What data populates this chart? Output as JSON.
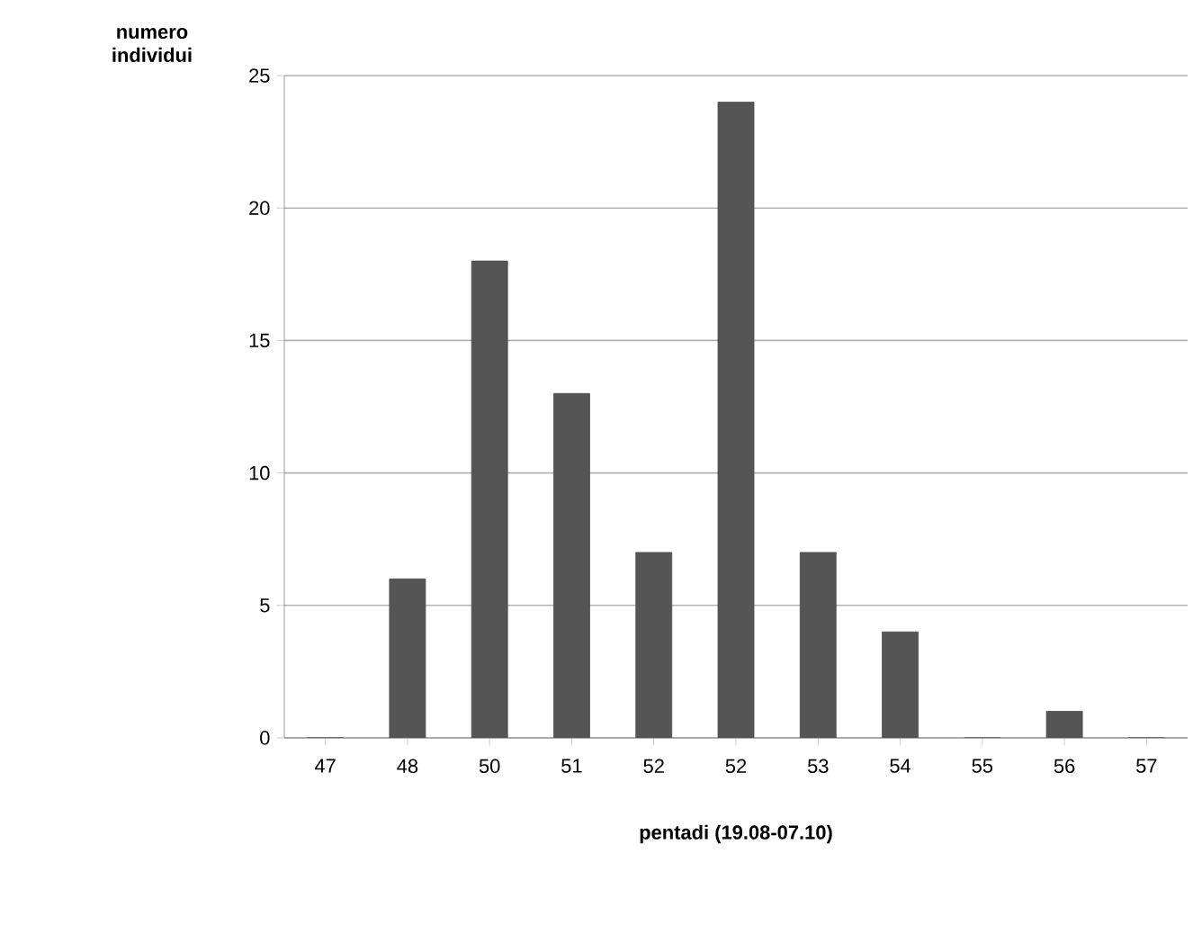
{
  "chart_data": {
    "type": "bar",
    "xlabel": "pentadi (19.08-07.10)",
    "ylabel": "numero individui",
    "categories": [
      "47",
      "48",
      "50",
      "51",
      "52",
      "52",
      "53",
      "54",
      "55",
      "56",
      "57"
    ],
    "values": [
      0,
      6,
      18,
      13,
      7,
      24,
      7,
      4,
      0,
      1,
      0
    ],
    "color": "#555555",
    "ylim": [
      0,
      25
    ],
    "yticks": [
      0,
      5,
      10,
      15,
      20,
      25
    ],
    "grid": "y"
  }
}
